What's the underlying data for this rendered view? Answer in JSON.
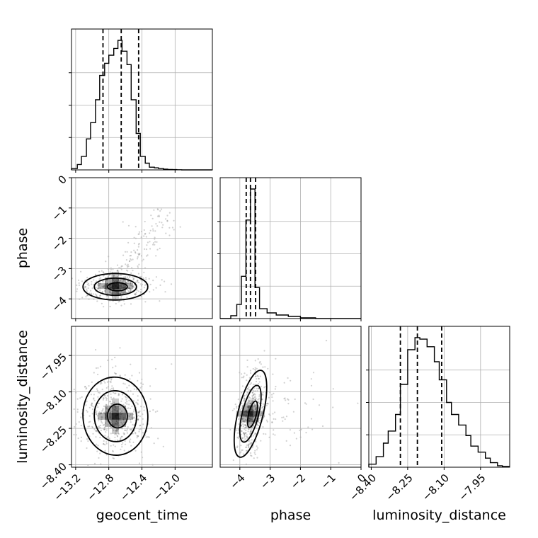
{
  "chart_data": {
    "type": "corner",
    "parameters": [
      "geocent_time",
      "phase",
      "luminosity_distance"
    ],
    "axes": {
      "geocent_time": {
        "label": "geocent_time",
        "ticks": [
          -13.2,
          -12.8,
          -12.4,
          -12.0
        ],
        "tick_labels": [
          "−13.2",
          "−12.8",
          "−12.4",
          "−12.0"
        ],
        "range": [
          -13.25,
          -11.55
        ]
      },
      "phase": {
        "label": "phase",
        "ticks": [
          -4,
          -3,
          -2,
          -1,
          0
        ],
        "tick_labels": [
          "−4",
          "−3",
          "−2",
          "−1",
          "0"
        ],
        "range": [
          -4.65,
          0
        ]
      },
      "luminosity_distance": {
        "label": "luminosity_distance",
        "ticks": [
          -8.4,
          -8.25,
          -8.1,
          -7.95
        ],
        "tick_labels": [
          "−8.40",
          "−8.25",
          "−8.10",
          "−7.95"
        ],
        "range": [
          -8.41,
          -7.83
        ]
      }
    },
    "histograms": {
      "geocent_time": {
        "bin_edges": [
          -13.25,
          -13.18,
          -13.13,
          -13.07,
          -13.02,
          -12.96,
          -12.91,
          -12.85,
          -12.8,
          -12.74,
          -12.69,
          -12.64,
          -12.58,
          -12.53,
          -12.47,
          -12.42,
          -12.36,
          -12.31,
          -12.25,
          -12.2,
          -12.14,
          -12.09,
          -12.03,
          -11.98,
          -11.92,
          -11.87,
          -11.81,
          -11.76,
          -11.7,
          -11.65,
          -11.55
        ],
        "counts": [
          0.01,
          0.04,
          0.1,
          0.23,
          0.35,
          0.52,
          0.7,
          0.79,
          0.85,
          0.9,
          0.96,
          0.88,
          0.78,
          0.52,
          0.27,
          0.1,
          0.05,
          0.02,
          0.015,
          0.01,
          0.005,
          0.003,
          0.002,
          0.001,
          0,
          0,
          0,
          0,
          0,
          0
        ],
        "quantiles": [
          -12.87,
          -12.65,
          -12.44
        ]
      },
      "phase": {
        "bin_edges": [
          -4.65,
          -4.3,
          -4.1,
          -3.95,
          -3.8,
          -3.65,
          -3.5,
          -3.35,
          -3.1,
          -2.8,
          -2.4,
          -2.0,
          -1.5,
          0
        ],
        "counts": [
          0,
          0.02,
          0.1,
          0.3,
          0.7,
          0.92,
          0.22,
          0.07,
          0.04,
          0.025,
          0.015,
          0.005,
          0
        ],
        "quantiles": [
          -3.79,
          -3.65,
          -3.48
        ]
      },
      "luminosity_distance": {
        "bin_edges": [
          -8.41,
          -8.38,
          -8.35,
          -8.33,
          -8.3,
          -8.28,
          -8.25,
          -8.22,
          -8.2,
          -8.17,
          -8.14,
          -8.12,
          -8.09,
          -8.07,
          -8.04,
          -8.01,
          -7.99,
          -7.96,
          -7.93,
          -7.91,
          -7.88,
          -7.86,
          -7.83
        ],
        "counts": [
          0.02,
          0.07,
          0.16,
          0.24,
          0.35,
          0.55,
          0.78,
          0.86,
          0.85,
          0.8,
          0.7,
          0.58,
          0.43,
          0.35,
          0.28,
          0.21,
          0.14,
          0.1,
          0.06,
          0.03,
          0.01,
          0.005
        ],
        "quantiles": [
          -8.28,
          -8.21,
          -8.11
        ]
      }
    },
    "scatter_2d": [
      {
        "x": "geocent_time",
        "y": "phase",
        "center": [
          -12.72,
          -3.6
        ],
        "spread": [
          0.17,
          0.19
        ],
        "tail_to": [
          -12.1,
          -1.0
        ],
        "contours": "3 levels"
      },
      {
        "x": "geocent_time",
        "y": "luminosity_distance",
        "center": [
          -12.72,
          -8.2
        ],
        "spread": [
          0.17,
          0.07
        ],
        "contours": "3 levels"
      },
      {
        "x": "phase",
        "y": "luminosity_distance",
        "center": [
          -3.65,
          -8.19
        ],
        "spread": [
          0.18,
          0.08
        ],
        "contours": "3 levels"
      }
    ]
  }
}
